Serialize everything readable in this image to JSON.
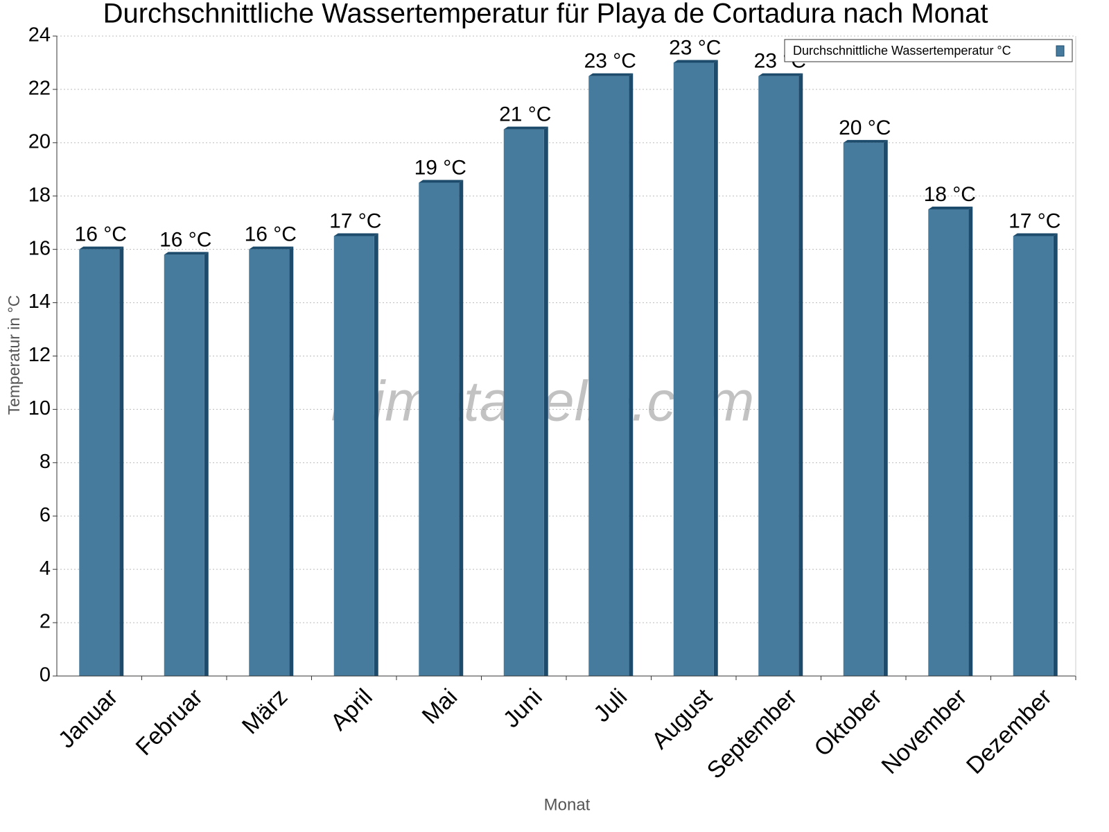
{
  "chart_data": {
    "type": "bar",
    "title": "Durchschnittliche Wassertemperatur für Playa de Cortadura nach Monat",
    "x_label": "Monat",
    "y_label": "Temperatur in °C",
    "watermark": "klimatabelle.com",
    "categories": [
      "Januar",
      "Februar",
      "März",
      "April",
      "Mai",
      "Juni",
      "Juli",
      "August",
      "September",
      "Oktober",
      "November",
      "Dezember"
    ],
    "series": [
      {
        "name": "Durchschnittliche Wassertemperatur °C",
        "color": "#467b9d",
        "values": [
          16.0,
          15.8,
          16.0,
          16.5,
          18.5,
          20.5,
          22.5,
          23.0,
          22.5,
          20.0,
          17.5,
          16.5
        ],
        "value_labels": [
          "16 °C",
          "16 °C",
          "16 °C",
          "17 °C",
          "19 °C",
          "21 °C",
          "23 °C",
          "23 °C",
          "23 °C",
          "20 °C",
          "18 °C",
          "17 °C"
        ]
      }
    ],
    "ylim": [
      0,
      24
    ],
    "yticks": [
      0,
      2,
      4,
      6,
      8,
      10,
      12,
      14,
      16,
      18,
      20,
      22,
      24
    ],
    "grid": true,
    "legend": "top-right"
  }
}
